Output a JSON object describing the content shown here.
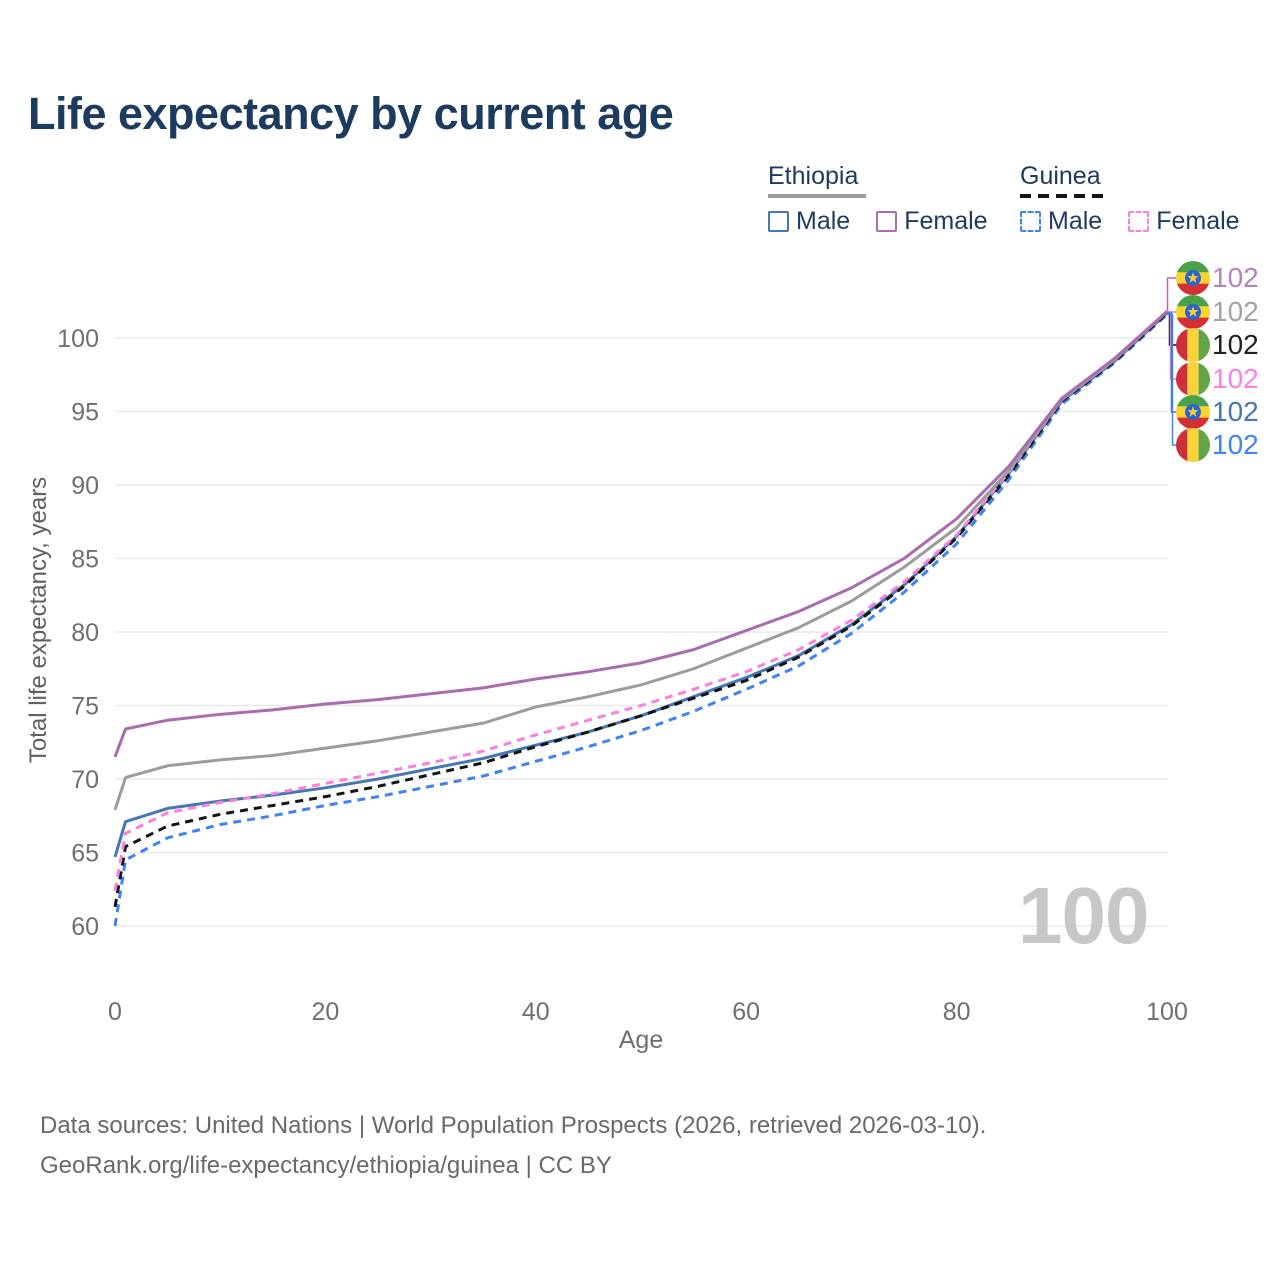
{
  "title": "Life expectancy by current age",
  "legend": {
    "groups": [
      {
        "label": "Ethiopia",
        "line_style": "solid",
        "underline_color": "#9c9c9c",
        "items": [
          {
            "label": "Male",
            "color": "#4576b5",
            "dashed": false
          },
          {
            "label": "Female",
            "color": "#aa6bb1",
            "dashed": false
          }
        ]
      },
      {
        "label": "Guinea",
        "line_style": "dashed",
        "underline_color": "#141414",
        "items": [
          {
            "label": "Male",
            "color": "#3f82f2",
            "dashed": true
          },
          {
            "label": "Female",
            "color": "#fc7ee0",
            "dashed": true
          }
        ]
      }
    ]
  },
  "chart_data": {
    "type": "line",
    "title": "Life expectancy by current age",
    "xlabel": "Age",
    "ylabel": "Total life expectancy, years",
    "xlim": [
      0,
      100
    ],
    "ylim": [
      60,
      102
    ],
    "x_ticks": [
      0,
      20,
      40,
      60,
      80,
      100
    ],
    "y_ticks": [
      60,
      65,
      70,
      75,
      80,
      85,
      90,
      95,
      100
    ],
    "grid": "horizontal",
    "watermark": "100",
    "x": [
      0,
      1,
      5,
      10,
      15,
      20,
      25,
      30,
      35,
      40,
      45,
      50,
      55,
      60,
      65,
      70,
      75,
      80,
      85,
      90,
      95,
      100
    ],
    "series": [
      {
        "name": "Ethiopia Female",
        "country": "Ethiopia",
        "sex": "Female",
        "color": "#aa6bb1",
        "dash": "solid",
        "end_label": "102",
        "values": [
          71.5,
          73.4,
          74.0,
          74.4,
          74.7,
          75.1,
          75.4,
          75.8,
          76.2,
          76.8,
          77.3,
          77.9,
          78.8,
          80.1,
          81.4,
          83.0,
          85.0,
          87.7,
          91.3,
          95.9,
          98.6,
          101.8
        ]
      },
      {
        "name": "Ethiopia",
        "country": "Ethiopia",
        "sex": "All",
        "color": "#9c9c9c",
        "dash": "solid",
        "end_label": "102",
        "values": [
          67.9,
          70.1,
          70.9,
          71.3,
          71.6,
          72.1,
          72.6,
          73.2,
          73.8,
          74.9,
          75.6,
          76.4,
          77.5,
          78.9,
          80.3,
          82.1,
          84.4,
          87.1,
          91.0,
          95.8,
          98.5,
          101.8
        ]
      },
      {
        "name": "Ethiopia Male",
        "country": "Ethiopia",
        "sex": "Male",
        "color": "#4576b5",
        "dash": "solid",
        "end_label": "102",
        "values": [
          64.7,
          67.1,
          68.0,
          68.5,
          68.9,
          69.4,
          70.0,
          70.7,
          71.4,
          72.3,
          73.2,
          74.3,
          75.6,
          76.9,
          78.4,
          80.5,
          83.2,
          86.5,
          90.8,
          95.7,
          98.4,
          101.7
        ]
      },
      {
        "name": "Guinea Female",
        "country": "Guinea",
        "sex": "Female",
        "color": "#fc7ee0",
        "dash": "dashed",
        "end_label": "102",
        "values": [
          62.4,
          66.3,
          67.7,
          68.4,
          69.0,
          69.7,
          70.4,
          71.1,
          71.9,
          73.0,
          74.0,
          75.0,
          76.1,
          77.3,
          78.8,
          80.8,
          83.4,
          86.6,
          90.9,
          95.8,
          98.5,
          101.8
        ]
      },
      {
        "name": "Guinea",
        "country": "Guinea",
        "sex": "All",
        "color": "#141414",
        "dash": "dashed",
        "end_label": "102",
        "values": [
          61.3,
          65.4,
          66.8,
          67.6,
          68.2,
          68.8,
          69.5,
          70.3,
          71.1,
          72.2,
          73.2,
          74.3,
          75.5,
          76.7,
          78.3,
          80.4,
          83.1,
          86.4,
          90.7,
          95.7,
          98.4,
          101.7
        ]
      },
      {
        "name": "Guinea Male",
        "country": "Guinea",
        "sex": "Male",
        "color": "#3f82f2",
        "dash": "dashed",
        "end_label": "102",
        "values": [
          60.0,
          64.5,
          66.0,
          66.9,
          67.5,
          68.2,
          68.8,
          69.5,
          70.2,
          71.2,
          72.2,
          73.3,
          74.6,
          76.1,
          77.7,
          79.9,
          82.7,
          86.0,
          90.4,
          95.5,
          98.3,
          101.6
        ]
      }
    ],
    "end_labels": [
      {
        "value": "102",
        "flag": "ethiopia",
        "series": "Ethiopia Female",
        "color": "#b583bb"
      },
      {
        "value": "102",
        "flag": "ethiopia",
        "series": "Ethiopia",
        "color": "#a3a3a3"
      },
      {
        "value": "102",
        "flag": "guinea",
        "series": "Guinea",
        "color": "#212121"
      },
      {
        "value": "102",
        "flag": "guinea",
        "series": "Guinea Female",
        "color": "#fc7ee0"
      },
      {
        "value": "102",
        "flag": "ethiopia",
        "series": "Ethiopia Male",
        "color": "#4576b5"
      },
      {
        "value": "102",
        "flag": "guinea",
        "series": "Guinea Male",
        "color": "#3f82f2"
      }
    ],
    "flag_colors": {
      "ethiopia": {
        "green": "#4aa147",
        "yellow": "#fcd42d",
        "red": "#d5302f",
        "emblem_blue": "#2c63cf"
      },
      "guinea": {
        "red": "#cf2e3b",
        "yellow": "#f9d23c",
        "green": "#62a546"
      }
    }
  },
  "footer": {
    "line1": "Data sources: United Nations | World Population Prospects (2026, retrieved 2026-03-10).",
    "line2": "GeoRank.org/life-expectancy/ethiopia/guinea | CC BY"
  }
}
